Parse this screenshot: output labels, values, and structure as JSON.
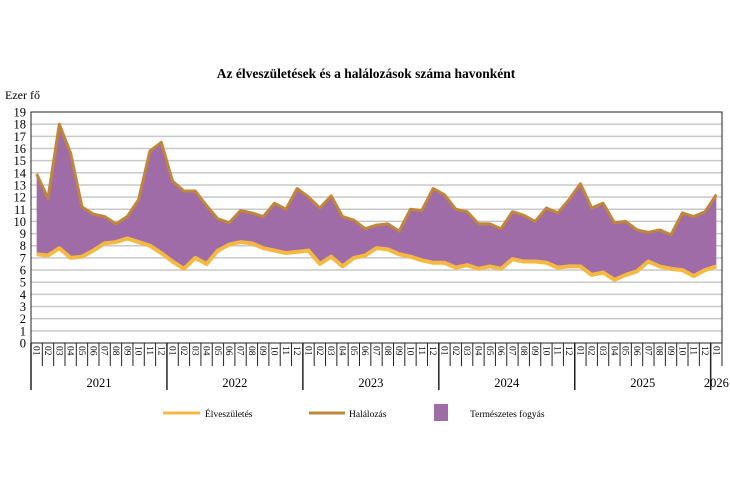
{
  "chart_data": {
    "type": "area",
    "title": "Az élveszületések és a halálozások száma havonként",
    "ylabel": "Ezer fő",
    "xlabel": "",
    "ylim": [
      0,
      19
    ],
    "yticks": [
      0,
      1,
      2,
      3,
      4,
      5,
      6,
      7,
      8,
      9,
      10,
      11,
      12,
      13,
      14,
      15,
      16,
      17,
      18,
      19
    ],
    "grid": true,
    "legend_position": "bottom",
    "years": [
      "2021",
      "2022",
      "2023",
      "2024",
      "2025",
      "2026"
    ],
    "month_labels": [
      "01",
      "02",
      "03",
      "04",
      "05",
      "06",
      "07",
      "08",
      "09",
      "10",
      "11",
      "12"
    ],
    "x_start": "2021-01",
    "x_end": "2026-01",
    "series": [
      {
        "name": "Élveszületés",
        "color": "#f5b942",
        "values": [
          7.3,
          7.2,
          7.8,
          7.0,
          7.1,
          7.6,
          8.2,
          8.3,
          8.6,
          8.3,
          8.0,
          7.4,
          6.7,
          6.1,
          7.0,
          6.5,
          7.6,
          8.1,
          8.3,
          8.2,
          7.8,
          7.6,
          7.4,
          7.5,
          7.6,
          6.5,
          7.1,
          6.3,
          7.0,
          7.2,
          7.8,
          7.7,
          7.3,
          7.1,
          6.8,
          6.6,
          6.6,
          6.2,
          6.4,
          6.1,
          6.3,
          6.1,
          6.9,
          6.7,
          6.7,
          6.6,
          6.2,
          6.3,
          6.3,
          5.6,
          5.8,
          5.2,
          5.6,
          5.9,
          6.7,
          6.3,
          6.1,
          6.0,
          5.5,
          6.0,
          6.3
        ]
      },
      {
        "name": "Halálozás",
        "color": "#c0873a",
        "values": [
          13.9,
          11.9,
          18.0,
          15.6,
          11.2,
          10.6,
          10.4,
          9.8,
          10.4,
          11.8,
          15.8,
          16.5,
          13.3,
          12.5,
          12.5,
          11.3,
          10.2,
          9.9,
          10.9,
          10.7,
          10.4,
          11.5,
          11.0,
          12.7,
          12.0,
          11.1,
          12.1,
          10.4,
          10.1,
          9.4,
          9.7,
          9.8,
          9.2,
          11.0,
          10.9,
          12.7,
          12.2,
          11.0,
          10.8,
          9.8,
          9.8,
          9.4,
          10.8,
          10.5,
          10.0,
          11.1,
          10.7,
          11.8,
          13.1,
          11.1,
          11.5,
          9.9,
          10.0,
          9.3,
          9.1,
          9.3,
          8.9,
          10.7,
          10.4,
          10.8,
          12.2
        ]
      },
      {
        "name": "Természetes fogyás",
        "color": "#a06ca8",
        "type": "area-between"
      }
    ]
  }
}
